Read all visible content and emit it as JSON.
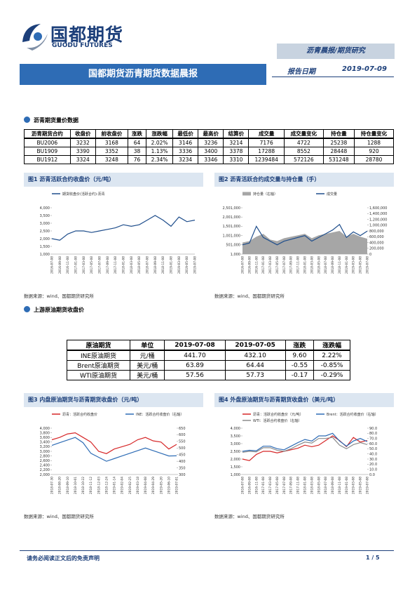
{
  "header": {
    "logo_cn": "国都期货",
    "logo_en": "GUODU FUTURES",
    "category": "沥青晨报/期货研究",
    "title": "国都期货沥青期货数据晨报",
    "date_label": "报告日期",
    "date": "2019-07-09"
  },
  "section1": {
    "heading": "沥青期货量价数据",
    "table": {
      "columns": [
        "沥青期货合约",
        "收盘价",
        "前收盘价",
        "涨跌",
        "涨跌幅",
        "最低价",
        "最高价",
        "结算价",
        "成交量",
        "成交量变化",
        "持仓量",
        "持仓量变化"
      ],
      "rows": [
        [
          "BU2006",
          "3232",
          "3168",
          "64",
          "2.02%",
          "3146",
          "3236",
          "3214",
          "7176",
          "4722",
          "25238",
          "1288"
        ],
        [
          "BU1909",
          "3390",
          "3352",
          "38",
          "1.13%",
          "3336",
          "3400",
          "3378",
          "17288",
          "8552",
          "28448",
          "920"
        ],
        [
          "BU1912",
          "3324",
          "3248",
          "76",
          "2.34%",
          "3234",
          "3346",
          "3310",
          "1239484",
          "572126",
          "531248",
          "28780"
        ]
      ]
    }
  },
  "figures": [
    {
      "title": "图1 沥青活跃合约收盘价（元/吨）",
      "source": "数据来源：wind、国都期货研究所",
      "chart": {
        "type": "line",
        "categories": [
          "2016-07-08",
          "2016-09-08",
          "2016-11-08",
          "2017-01-08",
          "2017-03-08",
          "2017-05-08",
          "2017-07-08",
          "2017-09-08",
          "2017-11-08",
          "2018-01-08",
          "2018-03-08",
          "2018-05-08",
          "2018-07-08",
          "2018-09-08",
          "2018-11-08",
          "2019-01-08",
          "2019-03-08",
          "2019-05-08",
          "2019-07-08"
        ],
        "series": [
          {
            "name": "期货收盘价(活跃合约):沥青",
            "color": "#1f4e8c",
            "values": [
              2000,
              1900,
              2300,
              2500,
              2500,
              2400,
              2500,
              2600,
              2700,
              2900,
              2800,
              2900,
              3200,
              3500,
              3200,
              2800,
              3400,
              3100,
              3200
            ]
          }
        ],
        "ylim": [
          1000,
          4000
        ],
        "yticks": [
          {
            "value": 1000,
            "label": "1,000"
          },
          {
            "value": 1500,
            "label": "1,500"
          },
          {
            "value": 2000,
            "label": "2,000"
          },
          {
            "value": 2500,
            "label": "2,500"
          },
          {
            "value": 3000,
            "label": "3,000"
          },
          {
            "value": 3500,
            "label": "3,500"
          },
          {
            "value": 4000,
            "label": "4,000"
          }
        ]
      }
    },
    {
      "title": "图2 沥青活跃合约成交量与持仓量（手）",
      "source": "数据来源：wind、国都期货研究所",
      "chart": {
        "type": "line",
        "categories": [
          "2016-07-08",
          "2016-09-08",
          "2016-11-08",
          "2017-01-08",
          "2017-03-08",
          "2017-05-08",
          "2017-07-08",
          "2017-09-08",
          "2017-11-08",
          "2018-01-08",
          "2018-03-08",
          "2018-05-08",
          "2018-07-08",
          "2018-09-08",
          "2018-11-08",
          "2019-01-08",
          "2019-03-08",
          "2019-05-08",
          "2019-07-08"
        ],
        "series": [
          {
            "name": "持仓量（右轴）",
            "color": "#a6a6a6",
            "kind": "area",
            "axis": "y2",
            "values": [
              400000,
              450000,
              600000,
              700000,
              500000,
              450000,
              550000,
              600000,
              650000,
              700000,
              550000,
              650000,
              700000,
              750000,
              800000,
              600000,
              700000,
              600000,
              530000
            ]
          },
          {
            "name": "成交量",
            "color": "#1f4e8c",
            "values": [
              500000,
              600000,
              1500000,
              900000,
              700000,
              500000,
              700000,
              800000,
              900000,
              1000000,
              700000,
              900000,
              1100000,
              1300000,
              1600000,
              900000,
              1200000,
              1000000,
              1240000
            ]
          }
        ],
        "ylim": [
          1000,
          2501000
        ],
        "yticks": [
          {
            "value": 1000,
            "label": "1,000"
          },
          {
            "value": 501000,
            "label": "501,000"
          },
          {
            "value": 1001000,
            "label": "1,001,000"
          },
          {
            "value": 1501000,
            "label": "1,501,000"
          },
          {
            "value": 2001000,
            "label": "2,001,000"
          },
          {
            "value": 2501000,
            "label": "2,501,000"
          }
        ],
        "y2lim": [
          0,
          1600000
        ],
        "y2ticks": [
          0,
          {
            "value": 200000,
            "label": "200,000"
          },
          {
            "value": 400000,
            "label": "400,000"
          },
          {
            "value": 600000,
            "label": "600,000"
          },
          {
            "value": 800000,
            "label": "800,000"
          },
          {
            "value": 1000000,
            "label": "1,000,000"
          },
          {
            "value": 1200000,
            "label": "1,200,000"
          },
          {
            "value": 1400000,
            "label": "1,400,000"
          },
          {
            "value": 1600000,
            "label": "1,600,000"
          }
        ]
      }
    },
    {
      "title": "图3 内盘原油期货与沥青期货收盘价（元/吨）",
      "source": "数据来源：wind、国都期货研究所",
      "chart": {
        "type": "line",
        "categories": [
          "2018-07-30",
          "2018-08-20",
          "2018-09-10",
          "2018-10-01",
          "2018-10-22",
          "2018-11-12",
          "2018-12-03",
          "2018-12-24",
          "2019-01-14",
          "2019-02-04",
          "2019-02-25",
          "2019-03-18",
          "2019-04-08",
          "2019-04-29",
          "2019-05-20",
          "2019-06-10",
          "2019-07-01"
        ],
        "series": [
          {
            "name": "沥青：活跃合约收盘价",
            "color": "#d62728",
            "values": [
              3500,
              3600,
              3750,
              3800,
              3600,
              3400,
              3000,
              2900,
              3100,
              3200,
              3300,
              3500,
              3600,
              3450,
              3400,
              3100,
              3300
            ]
          },
          {
            "name": "INE：活跃合约收盘价（右轴）",
            "color": "#2e6cb5",
            "axis": "y2",
            "values": [
              520,
              540,
              560,
              580,
              540,
              460,
              430,
              400,
              420,
              440,
              460,
              480,
              500,
              480,
              460,
              440,
              441
            ]
          }
        ],
        "ylim": [
          2000,
          4000
        ],
        "yticks": [
          {
            "value": 2000,
            "label": "2,000"
          },
          {
            "value": 2200,
            "label": "2,200"
          },
          {
            "value": 2400,
            "label": "2,400"
          },
          {
            "value": 2600,
            "label": "2,600"
          },
          {
            "value": 2800,
            "label": "2,800"
          },
          {
            "value": 3000,
            "label": "3,000"
          },
          {
            "value": 3200,
            "label": "3,200"
          },
          {
            "value": 3400,
            "label": "3,400"
          },
          {
            "value": 3600,
            "label": "3,600"
          },
          {
            "value": 3800,
            "label": "3,800"
          },
          {
            "value": 4000,
            "label": "4,000"
          }
        ],
        "y2lim": [
          300,
          650
        ],
        "y2ticks": [
          300,
          350,
          400,
          450,
          500,
          550,
          600,
          650
        ]
      }
    },
    {
      "title": "图4 外盘原油期货与沥青期货收盘价（美元/吨）",
      "source": "数据来源：wind、国都期货研究所",
      "chart": {
        "type": "line",
        "categories": [
          "2016-07-08",
          "2016-09-08",
          "2016-11-08",
          "2017-01-08",
          "2017-03-08",
          "2017-05-08",
          "2017-07-08",
          "2017-09-08",
          "2017-11-08",
          "2018-01-08",
          "2018-03-08",
          "2018-05-08",
          "2018-07-08",
          "2018-09-08",
          "2018-11-08",
          "2019-01-08",
          "2019-03-08",
          "2019-05-08",
          "2019-07-08"
        ],
        "series": [
          {
            "name": "沥青：活跃合约收盘价（元/吨）",
            "color": "#d62728",
            "values": [
              2000,
              1900,
              2300,
              2500,
              2500,
              2400,
              2500,
              2600,
              2700,
              2900,
              2800,
              2900,
              3200,
              3500,
              3200,
              2800,
              3400,
              3100,
              3200
            ]
          },
          {
            "name": "Brent：活跃合约收盘价（右轴）",
            "color": "#2e6cb5",
            "axis": "y2",
            "values": [
              45,
              47,
              46,
              55,
              55,
              50,
              48,
              55,
              62,
              68,
              65,
              75,
              75,
              80,
              65,
              55,
              65,
              70,
              64
            ]
          },
          {
            "name": "WTI：活跃合约收盘价（右轴）",
            "color": "#8c8c8c",
            "axis": "y2",
            "values": [
              43,
              45,
              44,
              52,
              52,
              47,
              45,
              50,
              57,
              63,
              61,
              70,
              70,
              72,
              57,
              50,
              58,
              62,
              58
            ]
          }
        ],
        "ylim": [
          1000,
          4000
        ],
        "yticks": [
          {
            "value": 1000,
            "label": "1,000"
          },
          {
            "value": 1500,
            "label": "1,500"
          },
          {
            "value": 2000,
            "label": "2,000"
          },
          {
            "value": 2500,
            "label": "2,500"
          },
          {
            "value": 3000,
            "label": "3,000"
          },
          {
            "value": 3500,
            "label": "3,500"
          },
          {
            "value": 4000,
            "label": "4,000"
          }
        ],
        "y2lim": [
          0,
          90
        ],
        "y2ticks": [
          {
            "value": 0,
            "label": "0.0"
          },
          {
            "value": 10,
            "label": "10.0"
          },
          {
            "value": 20,
            "label": "20.0"
          },
          {
            "value": 30,
            "label": "30.0"
          },
          {
            "value": 40,
            "label": "40.0"
          },
          {
            "value": 50,
            "label": "50.0"
          },
          {
            "value": 60,
            "label": "60.0"
          },
          {
            "value": 70,
            "label": "70.0"
          },
          {
            "value": 80,
            "label": "80.0"
          },
          {
            "value": 90,
            "label": "90.0"
          }
        ]
      }
    }
  ],
  "section2": {
    "heading": "上游原油期货收盘价",
    "table": {
      "columns": [
        "原油期货",
        "单位",
        "2019-07-08",
        "2019-07-05",
        "涨跌",
        "涨跌幅"
      ],
      "rows": [
        [
          "INE原油期货",
          "元/桶",
          "441.70",
          "432.10",
          "9.60",
          "2.22%"
        ],
        [
          "Brent原油期货",
          "美元/桶",
          "63.89",
          "64.44",
          "-0.55",
          "-0.85%"
        ],
        [
          "WTI原油期货",
          "美元/桶",
          "57.56",
          "57.73",
          "-0.17",
          "-0.29%"
        ]
      ]
    }
  },
  "footer": {
    "disclaimer": "请务必阅读正文后的免责声明",
    "page": "1 / 5"
  }
}
